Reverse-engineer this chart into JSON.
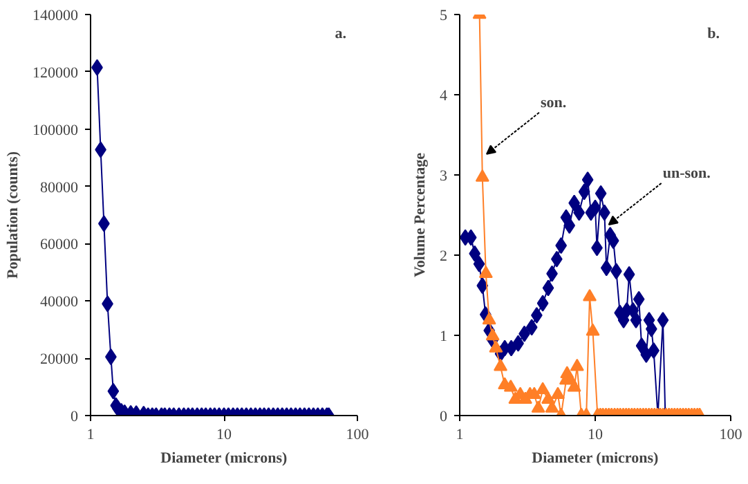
{
  "chart_data": [
    {
      "type": "line",
      "xlabel": "Diameter (microns)",
      "ylabel": "Population (counts)",
      "log": "x",
      "grid": false,
      "marker": "diamond",
      "color": "#000080",
      "xlim": [
        1,
        100
      ],
      "xticks": [
        1,
        10,
        100
      ],
      "ylim": [
        0,
        140000
      ],
      "yticks": [
        0,
        20000,
        40000,
        60000,
        80000,
        100000,
        120000,
        140000
      ],
      "annotations": [
        "a."
      ],
      "x": [
        1.12,
        1.19,
        1.26,
        1.34,
        1.42,
        1.48,
        1.55,
        1.6,
        1.7,
        1.8,
        2.0,
        2.2,
        2.5,
        2.7,
        2.9,
        3.1,
        3.4,
        3.6,
        3.9,
        4.2,
        4.6,
        5,
        5.4,
        5.8,
        6.3,
        6.8,
        7.3,
        7.9,
        8.5,
        9.2,
        10,
        10.8,
        11.7,
        12.6,
        13.6,
        14.7,
        15.9,
        17.2,
        18.6,
        20,
        21.6,
        23.4,
        25.3,
        27.3,
        29.5,
        31.8,
        34.4,
        37.1,
        40.1,
        43.3,
        46.8,
        50.5,
        54.6,
        59,
        61
      ],
      "values": [
        121500,
        92800,
        67000,
        39000,
        20500,
        8500,
        3500,
        2500,
        1500,
        1000,
        800,
        700,
        500,
        0,
        0,
        0,
        0,
        0,
        0,
        0,
        0,
        0,
        0,
        0,
        0,
        0,
        0,
        0,
        0,
        0,
        0,
        0,
        0,
        0,
        0,
        0,
        0,
        0,
        0,
        0,
        0,
        0,
        0,
        0,
        0,
        0,
        0,
        0,
        0,
        0,
        0,
        0,
        0,
        0,
        0
      ]
    },
    {
      "type": "line",
      "xlabel": "Diameter (microns)",
      "ylabel": "Volume Percentage",
      "log": "x",
      "grid": false,
      "xlim": [
        1,
        100
      ],
      "xticks": [
        1,
        10,
        100
      ],
      "ylim": [
        0,
        5
      ],
      "yticks": [
        0,
        1,
        2,
        3,
        4,
        5
      ],
      "annotations": [
        "b.",
        {
          "text": "son.",
          "x": 1.58,
          "y": 3.26
        },
        {
          "text": "un-son.",
          "x": 12.6,
          "y": 2.38
        }
      ],
      "series": [
        {
          "color": "#000080",
          "marker": "diamond",
          "x": [
            1.1,
            1.21,
            1.29,
            1.39,
            1.47,
            1.55,
            1.65,
            1.75,
            2.0,
            2.15,
            2.4,
            2.7,
            3.0,
            3.4,
            3.7,
            4.1,
            4.5,
            4.8,
            5.2,
            5.6,
            6.1,
            6.45,
            7.0,
            7.6,
            8.3,
            8.8,
            9.3,
            10,
            10.3,
            11.0,
            11.7,
            12.1,
            12.9,
            13.6,
            14.3,
            15.2,
            16.2,
            17.1,
            17.8,
            19.0,
            20,
            21,
            22,
            23.8,
            25,
            26,
            27,
            29,
            31.6,
            32.9
          ],
          "values": [
            2.22,
            2.22,
            2.02,
            1.89,
            1.62,
            1.26,
            1.06,
            0.94,
            0.77,
            0.84,
            0.84,
            0.9,
            1.02,
            1.1,
            1.25,
            1.4,
            1.59,
            1.77,
            1.95,
            2.12,
            2.47,
            2.37,
            2.65,
            2.53,
            2.79,
            2.94,
            2.53,
            2.59,
            2.09,
            2.77,
            2.53,
            1.84,
            2.25,
            2.18,
            1.8,
            1.28,
            1.19,
            1.31,
            1.76,
            1.31,
            1.19,
            1.45,
            0.87,
            0.76,
            1.19,
            1.08,
            0.81,
            0,
            1.19,
            0
          ]
        },
        {
          "color": "#ff7f27",
          "marker": "triangle",
          "x": [
            1.4,
            1.47,
            1.56,
            1.65,
            1.75,
            1.85,
            2.0,
            2.15,
            2.38,
            2.57,
            2.8,
            3.05,
            3.3,
            3.55,
            3.8,
            4.1,
            4.5,
            4.8,
            5.3,
            5.6,
            6.1,
            6.2,
            6.55,
            7.0,
            7.35,
            7.9,
            8.6,
            9.1,
            9.6,
            10.4,
            10.9,
            11.4,
            12.0,
            12.6,
            13.2,
            13.9,
            14.6,
            15.3,
            16.1,
            16.9,
            17.7,
            18.6,
            19.5,
            20.5,
            21.5,
            22.6,
            23.7,
            24.9,
            26.1,
            27.4,
            28.8,
            30.2,
            31.7,
            33.3,
            35,
            36.7,
            38.5,
            40.4,
            42.4,
            44.5,
            46.7,
            49,
            51.5,
            54,
            56.7,
            59
          ],
          "values": [
            5,
            2.97,
            1.77,
            1.19,
            0.99,
            0.84,
            0.61,
            0.38,
            0.35,
            0.2,
            0.26,
            0.2,
            0.26,
            0.26,
            0.09,
            0.32,
            0.2,
            0.09,
            0.26,
            0,
            0.44,
            0.52,
            0.44,
            0.35,
            0.61,
            0,
            0,
            1.48,
            1.05,
            0,
            0,
            0,
            0,
            0,
            0,
            0,
            0,
            0,
            0,
            0,
            0,
            0,
            0,
            0,
            0,
            0,
            0,
            0,
            0,
            0,
            0,
            0,
            0,
            0,
            0,
            0,
            0,
            0,
            0,
            0,
            0,
            0,
            0,
            0,
            0,
            0
          ]
        }
      ]
    }
  ]
}
